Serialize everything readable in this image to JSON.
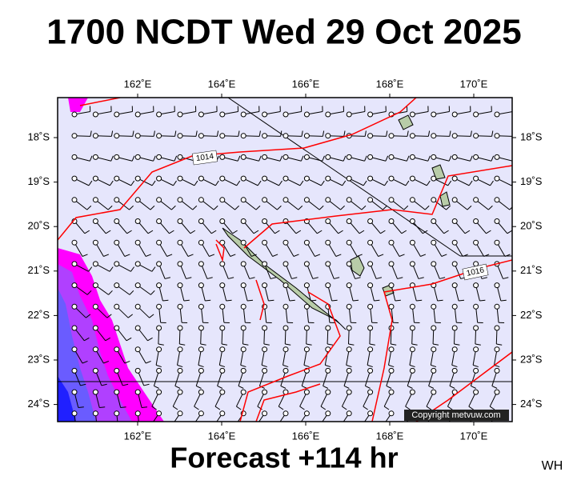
{
  "title": "1700 NCDT Wed 29 Oct 2025",
  "lon_labels": [
    "162˚E",
    "164˚E",
    "166˚E",
    "168˚E",
    "170˚E"
  ],
  "lat_labels": [
    "18˚S",
    "19˚S",
    "20˚S",
    "21˚S",
    "22˚S",
    "23˚S",
    "24˚S"
  ],
  "isobar_labels": [
    "1014",
    "1016"
  ],
  "copyright": "Copyright metvuw.com",
  "footer": "Forecast +114 hr",
  "corner_label": "WH"
}
